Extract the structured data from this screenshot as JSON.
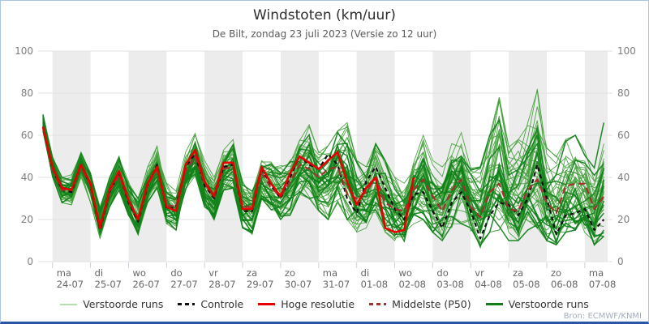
{
  "header": {
    "title": "Windstoten (km/uur)",
    "subtitle": "De Bilt, zondag 23 juli 2023 (Versie zo 12 uur)"
  },
  "source": "Bron: ECMWF/KNMI",
  "legend": {
    "items": [
      {
        "label": "Verstoorde runs",
        "color": "#b7dcb0",
        "dash": false,
        "weight": 2
      },
      {
        "label": "Controle",
        "color": "#111111",
        "dash": true,
        "weight": 3
      },
      {
        "label": "Hoge resolutie",
        "color": "#e60000",
        "dash": false,
        "weight": 3
      },
      {
        "label": "Middelste (P50)",
        "color": "#a53030",
        "dash": true,
        "weight": 3
      },
      {
        "label": "Verstoorde runs",
        "color": "#117f15",
        "dash": false,
        "weight": 3
      }
    ]
  },
  "frame": {
    "border_color": "#a9c4e4",
    "bottom_border_color": "#2b55a7",
    "background": "#ffffff",
    "band_color": "#ececec",
    "grid_color": "#e2e2e2",
    "tick_color": "#c9d2dd",
    "axis_label_color": "#7d7d7d",
    "x_label_color": "#666666"
  },
  "chart_data": {
    "type": "line",
    "title": "Windstoten (km/uur)",
    "subtitle": "De Bilt, zondag 23 juli 2023 (Versie zo 12 uur)",
    "xlabel": "",
    "ylabel": "km/uur",
    "ylim": [
      0,
      100
    ],
    "y_ticks": [
      0,
      20,
      40,
      60,
      80,
      100
    ],
    "x_range_days": [
      -0.25,
      14.6
    ],
    "time_step_days": 0.25,
    "t_start": -0.25,
    "x_days": [
      {
        "day": "ma",
        "date": "24-07"
      },
      {
        "day": "di",
        "date": "25-07"
      },
      {
        "day": "wo",
        "date": "26-07"
      },
      {
        "day": "do",
        "date": "27-07"
      },
      {
        "day": "vr",
        "date": "28-07"
      },
      {
        "day": "za",
        "date": "29-07"
      },
      {
        "day": "zo",
        "date": "30-07"
      },
      {
        "day": "ma",
        "date": "31-07"
      },
      {
        "day": "di",
        "date": "01-08"
      },
      {
        "day": "wo",
        "date": "02-08"
      },
      {
        "day": "do",
        "date": "03-08"
      },
      {
        "day": "vr",
        "date": "04-08"
      },
      {
        "day": "za",
        "date": "05-08"
      },
      {
        "day": "zo",
        "date": "06-08"
      },
      {
        "day": "ma",
        "date": "07-08"
      }
    ],
    "grid": true,
    "legend_position": "bottom",
    "shaded_bands_on_even_days": true,
    "series": [
      {
        "name": "Controle",
        "color": "#111111",
        "dash": "5 4",
        "width": 2.2,
        "values": [
          64,
          44,
          34,
          33,
          46,
          36,
          15,
          33,
          42,
          28,
          19,
          36,
          46,
          25,
          26,
          45,
          51,
          36,
          30,
          45,
          46,
          24,
          24,
          44,
          36,
          30,
          40,
          50,
          46,
          44,
          51,
          46,
          30,
          23,
          38,
          45,
          35,
          25,
          20,
          32,
          33,
          24,
          16,
          28,
          33,
          24,
          11,
          22,
          28,
          27,
          22,
          30,
          46,
          30,
          13,
          22,
          23,
          25,
          15,
          20
        ]
      },
      {
        "name": "Middelste (P50)",
        "color": "#a53030",
        "dash": "8 5",
        "width": 2.2,
        "values": [
          64,
          44,
          34,
          34,
          45,
          36,
          17,
          33,
          41,
          29,
          20,
          36,
          44,
          27,
          26,
          43,
          50,
          37,
          31,
          44,
          45,
          26,
          26,
          42,
          35,
          31,
          38,
          46,
          44,
          40,
          44,
          45,
          32,
          30,
          33,
          40,
          28,
          25,
          24,
          34,
          39,
          31,
          24,
          34,
          39,
          26,
          21,
          33,
          37,
          25,
          24,
          34,
          39,
          28,
          23,
          36,
          37,
          37,
          25,
          31
        ]
      },
      {
        "name": "Hoge resolutie",
        "color": "#e60000",
        "dash": "",
        "width": 2.6,
        "values": [
          64,
          45,
          35,
          34,
          46,
          37,
          16,
          34,
          43,
          29,
          20,
          37,
          45,
          26,
          24,
          46,
          53,
          38,
          31,
          47,
          47,
          25,
          25,
          45,
          37,
          31,
          42,
          50,
          47,
          44,
          48,
          52,
          38,
          27,
          35,
          40,
          16,
          14,
          15,
          40
        ]
      }
    ],
    "ensemble": {
      "name": "Verstoorde runs",
      "count": 50,
      "seed": 11,
      "color_thin": "#44a13c",
      "color_dark": "#11821a",
      "width_thin": 0.9,
      "width_dark": 1.5,
      "env_lo": [
        62,
        40,
        28,
        27,
        40,
        28,
        11,
        26,
        34,
        22,
        13,
        28,
        35,
        18,
        15,
        33,
        40,
        26,
        20,
        34,
        35,
        16,
        13,
        30,
        24,
        20,
        22,
        32,
        30,
        24,
        20,
        28,
        20,
        14,
        16,
        22,
        12,
        10,
        8,
        18,
        20,
        14,
        10,
        16,
        18,
        12,
        7,
        14,
        15,
        10,
        10,
        15,
        16,
        10,
        8,
        14,
        15,
        13,
        8,
        12
      ],
      "env_hi": [
        70,
        50,
        40,
        42,
        52,
        44,
        26,
        40,
        50,
        38,
        30,
        45,
        56,
        38,
        35,
        52,
        62,
        48,
        40,
        53,
        58,
        38,
        35,
        48,
        50,
        46,
        48,
        58,
        65,
        52,
        55,
        62,
        66,
        48,
        45,
        56,
        48,
        40,
        38,
        52,
        60,
        48,
        45,
        56,
        62,
        48,
        45,
        60,
        78,
        55,
        58,
        66,
        82,
        55,
        50,
        58,
        60,
        55,
        45,
        66
      ]
    }
  }
}
